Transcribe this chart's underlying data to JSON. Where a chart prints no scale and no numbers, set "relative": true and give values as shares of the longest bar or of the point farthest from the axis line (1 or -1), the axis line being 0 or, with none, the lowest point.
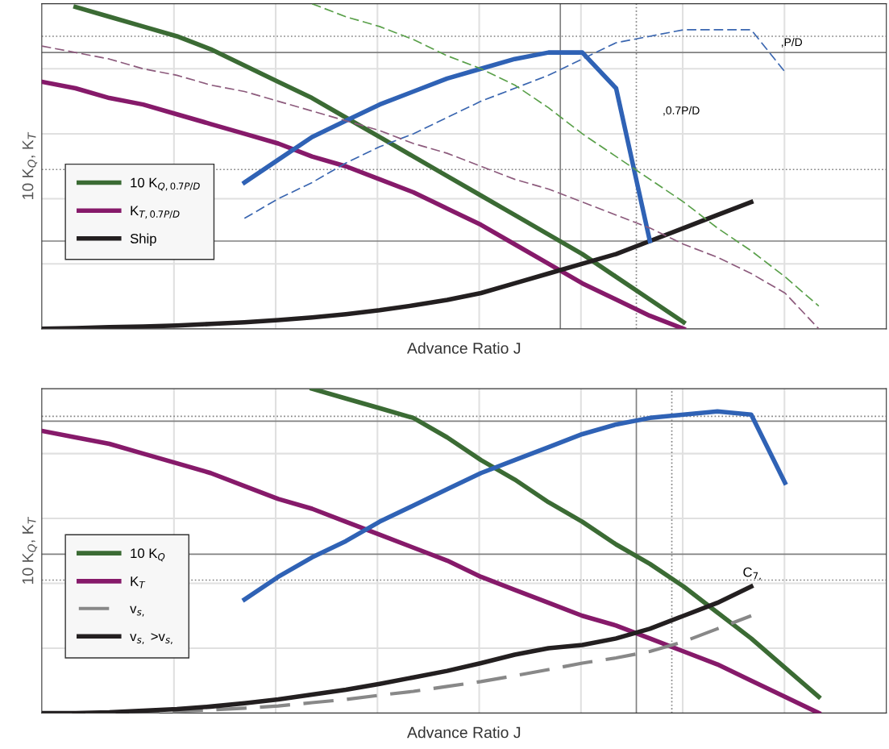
{
  "chart_data": [
    {
      "type": "line",
      "relative": true,
      "xlabel": "Advance Ratio J",
      "ylabel": "10 K$_{Q}$, K$_{T}$",
      "grid": true,
      "legend": "left",
      "categories": [
        null,
        null,
        null,
        null,
        null,
        null,
        null,
        null,
        null,
        null,
        null,
        null,
        null,
        null,
        null,
        null,
        null,
        null,
        null,
        null,
        null,
        null,
        null,
        null,
        null,
        null
      ],
      "series": [
        {
          "name": "10 K$_{Q,0.7P/D}$",
          "color": "#3b6b34",
          "line_style": "solid",
          "values": [
            null,
            0.99,
            0.96,
            0.93,
            0.9,
            0.86,
            0.81,
            0.76,
            0.71,
            0.65,
            0.59,
            0.53,
            0.47,
            0.41,
            0.35,
            0.29,
            0.23,
            0.16,
            0.09,
            0.02,
            null,
            null,
            null,
            null,
            null,
            null
          ]
        },
        {
          "name": "K$_{T,0.7P/D}$",
          "color": "#861a6a",
          "line_style": "solid",
          "values": [
            0.76,
            0.74,
            0.71,
            0.69,
            0.66,
            0.63,
            0.6,
            0.57,
            0.53,
            0.5,
            0.46,
            0.42,
            0.37,
            0.32,
            0.26,
            0.2,
            0.14,
            0.09,
            0.04,
            0.0,
            null,
            null,
            null,
            null,
            null,
            null
          ]
        },
        {
          "name": "Ship",
          "color": "#231f20",
          "line_style": "solid",
          "values": [
            0.0,
            0.002,
            0.005,
            0.007,
            0.01,
            0.015,
            0.02,
            0.027,
            0.035,
            0.045,
            0.057,
            0.072,
            0.089,
            0.11,
            0.14,
            0.17,
            0.2,
            0.23,
            0.27,
            0.31,
            0.35,
            0.39,
            null,
            null,
            null,
            null
          ]
        },
        {
          "color": "#2f62b5",
          "line_style": "solid",
          "values": [
            null,
            null,
            null,
            null,
            null,
            null,
            0.45,
            0.52,
            0.59,
            0.64,
            0.69,
            0.73,
            0.77,
            0.8,
            0.83,
            0.85,
            0.85,
            0.74,
            0.27,
            null,
            null,
            null,
            null,
            null,
            null,
            null
          ]
        },
        {
          "color": "#3a66b0",
          "line_style": "dashed",
          "values": [
            null,
            null,
            null,
            null,
            null,
            null,
            0.34,
            0.4,
            0.45,
            0.51,
            0.56,
            0.6,
            0.65,
            0.7,
            0.74,
            0.78,
            0.83,
            0.88,
            0.9,
            0.92,
            0.92,
            0.92,
            0.79,
            null,
            null,
            null
          ]
        },
        {
          "color": "#5aa04a",
          "line_style": "dashed",
          "values": [
            null,
            null,
            null,
            null,
            null,
            null,
            null,
            null,
            1.0,
            0.96,
            0.93,
            0.89,
            0.84,
            0.8,
            0.75,
            0.68,
            0.6,
            0.53,
            0.46,
            0.39,
            0.31,
            0.24,
            0.16,
            0.07,
            null,
            null
          ]
        },
        {
          "color": "#8c5a7c",
          "line_style": "dashed",
          "values": [
            0.87,
            0.85,
            0.83,
            0.8,
            0.78,
            0.75,
            0.73,
            0.7,
            0.67,
            0.64,
            0.61,
            0.57,
            0.54,
            0.5,
            0.46,
            0.43,
            0.39,
            0.35,
            0.31,
            0.26,
            0.22,
            0.17,
            0.11,
            0.0,
            null,
            null
          ]
        }
      ],
      "ref_lines": [
        {
          "axis": "y",
          "value": 0.85,
          "line_style": "solid",
          "color": "#808080"
        },
        {
          "axis": "y",
          "value": 0.27,
          "line_style": "solid",
          "color": "#808080"
        },
        {
          "axis": "y",
          "value": 0.9,
          "line_style": "dotted",
          "color": "#808080"
        },
        {
          "axis": "y",
          "value": 0.49,
          "line_style": "dotted",
          "color": "#808080"
        }
      ],
      "annotations": [
        ",P/D",
        ",0.7P/D"
      ]
    },
    {
      "type": "line",
      "relative": true,
      "xlabel": "Advance Ratio J",
      "ylabel": "10 K$_{Q}$, K$_{T}$",
      "grid": true,
      "legend": "left",
      "categories": [
        null,
        null,
        null,
        null,
        null,
        null,
        null,
        null,
        null,
        null,
        null,
        null,
        null,
        null,
        null,
        null,
        null,
        null,
        null,
        null,
        null,
        null,
        null,
        null,
        null,
        null
      ],
      "series": [
        {
          "name": "10 K$_{Q}$",
          "color": "#3b6b34",
          "line_style": "solid",
          "values": [
            null,
            null,
            null,
            null,
            null,
            null,
            null,
            null,
            1.0,
            0.97,
            0.94,
            0.91,
            0.85,
            0.78,
            0.72,
            0.65,
            0.59,
            0.52,
            0.46,
            0.39,
            0.31,
            0.23,
            0.14,
            0.05,
            null,
            null
          ]
        },
        {
          "name": "K$_{T}$",
          "color": "#861a6a",
          "line_style": "solid",
          "values": [
            0.87,
            0.85,
            0.83,
            0.8,
            0.77,
            0.74,
            0.7,
            0.66,
            0.63,
            0.59,
            0.55,
            0.51,
            0.47,
            0.42,
            0.38,
            0.34,
            0.3,
            0.27,
            0.23,
            0.19,
            0.15,
            0.1,
            0.05,
            0.0,
            null,
            null
          ]
        },
        {
          "name": "v$_{s,}$",
          "color": "#888888",
          "line_style": "dashed",
          "values": [
            0.0,
            0.0,
            0.0,
            0.002,
            0.005,
            0.01,
            0.015,
            0.022,
            0.032,
            0.042,
            0.055,
            0.067,
            0.082,
            0.097,
            0.115,
            0.134,
            0.154,
            0.17,
            0.19,
            0.22,
            0.26,
            0.3,
            null,
            null,
            null,
            null
          ]
        },
        {
          "name": "v$_{s,}$ >v$_{s,}$",
          "color": "#231f20",
          "line_style": "solid",
          "values": [
            0.0,
            0.0,
            0.002,
            0.007,
            0.012,
            0.02,
            0.03,
            0.042,
            0.057,
            0.072,
            0.09,
            0.11,
            0.13,
            0.154,
            0.18,
            0.2,
            0.21,
            0.23,
            0.26,
            0.3,
            0.34,
            0.39,
            null,
            null,
            null,
            null
          ]
        },
        {
          "color": "#2f62b5",
          "line_style": "solid",
          "values": [
            null,
            null,
            null,
            null,
            null,
            null,
            0.35,
            0.42,
            0.48,
            0.53,
            0.59,
            0.64,
            0.69,
            0.74,
            0.78,
            0.82,
            0.86,
            0.89,
            0.91,
            0.92,
            0.93,
            0.92,
            0.71,
            null,
            null,
            null
          ]
        }
      ],
      "ref_lines": [
        {
          "axis": "y",
          "value": 0.9,
          "line_style": "solid",
          "color": "#808080"
        },
        {
          "axis": "y",
          "value": 0.49,
          "line_style": "solid",
          "color": "#808080"
        },
        {
          "axis": "y",
          "value": 0.915,
          "line_style": "dotted",
          "color": "#808080"
        },
        {
          "axis": "y",
          "value": 0.41,
          "line_style": "dotted",
          "color": "#808080"
        }
      ],
      "annotations": [
        "C$_{7,}$"
      ]
    }
  ]
}
